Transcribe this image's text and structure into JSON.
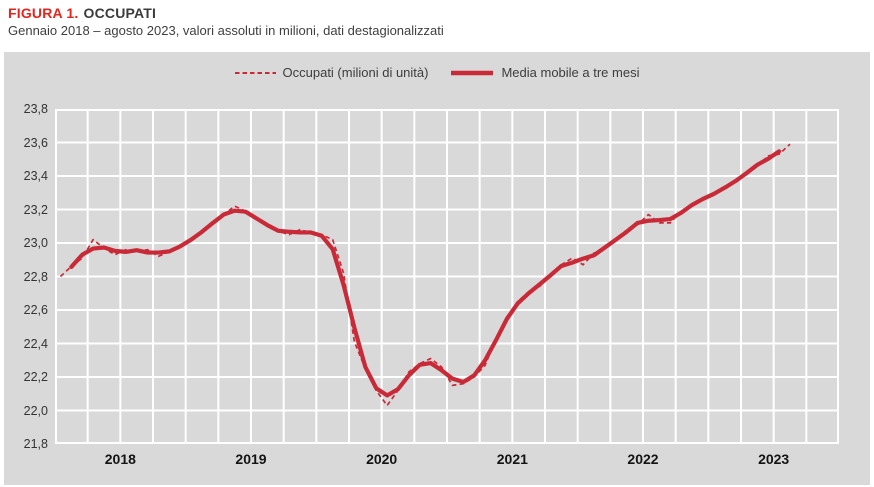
{
  "header": {
    "figure_label": "FIGURA 1.",
    "title": "OCCUPATI",
    "subtitle": "Gennaio 2018 – agosto 2023, valori assoluti in milioni, dati destagionalizzati"
  },
  "colors": {
    "accent_red": "#e3251d",
    "series_red": "#c92a38",
    "panel_bg": "#d9d9d9",
    "grid": "#ffffff",
    "text_dark": "#3d3d3d"
  },
  "chart": {
    "legend": [
      {
        "label": "Occupati (milioni di unità)",
        "style": "dashed"
      },
      {
        "label": "Media mobile a tre mesi",
        "style": "solid"
      }
    ],
    "y_tick_labels": [
      "23,8",
      "23,6",
      "23,4",
      "23,2",
      "23,0",
      "22,8",
      "22,6",
      "22,4",
      "22,2",
      "22,0",
      "21,8"
    ],
    "x_tick_labels": [
      "2018",
      "2019",
      "2020",
      "2021",
      "2022",
      "2023"
    ]
  },
  "chart_data": {
    "type": "line",
    "title": "FIGURA 1. OCCUPATI",
    "subtitle": "Gennaio 2018 – agosto 2023, valori assoluti in milioni, dati destagionalizzati",
    "unit": "milioni di unità",
    "x_freq": "monthly",
    "x_start": "2018-01",
    "x_end": "2023-08",
    "x_months": [
      "2018-01",
      "2018-02",
      "2018-03",
      "2018-04",
      "2018-05",
      "2018-06",
      "2018-07",
      "2018-08",
      "2018-09",
      "2018-10",
      "2018-11",
      "2018-12",
      "2019-01",
      "2019-02",
      "2019-03",
      "2019-04",
      "2019-05",
      "2019-06",
      "2019-07",
      "2019-08",
      "2019-09",
      "2019-10",
      "2019-11",
      "2019-12",
      "2020-01",
      "2020-02",
      "2020-03",
      "2020-04",
      "2020-05",
      "2020-06",
      "2020-07",
      "2020-08",
      "2020-09",
      "2020-10",
      "2020-11",
      "2020-12",
      "2021-01",
      "2021-02",
      "2021-03",
      "2021-04",
      "2021-05",
      "2021-06",
      "2021-07",
      "2021-08",
      "2021-09",
      "2021-10",
      "2021-11",
      "2021-12",
      "2022-01",
      "2022-02",
      "2022-03",
      "2022-04",
      "2022-05",
      "2022-06",
      "2022-07",
      "2022-08",
      "2022-09",
      "2022-10",
      "2022-11",
      "2022-12",
      "2023-01",
      "2023-02",
      "2023-03",
      "2023-04",
      "2023-05",
      "2023-06",
      "2023-07",
      "2023-08"
    ],
    "series": [
      {
        "name": "Occupati (milioni di unità)",
        "style": "dashed",
        "values": [
          22.8,
          22.86,
          22.91,
          23.02,
          22.97,
          22.93,
          22.96,
          22.95,
          22.96,
          22.92,
          22.95,
          22.98,
          23.01,
          23.07,
          23.12,
          23.17,
          23.22,
          23.19,
          23.15,
          23.1,
          23.07,
          23.05,
          23.08,
          23.06,
          23.05,
          23.02,
          22.82,
          22.41,
          22.25,
          22.12,
          22.03,
          22.12,
          22.23,
          22.28,
          22.31,
          22.26,
          22.15,
          22.16,
          22.2,
          22.27,
          22.43,
          22.56,
          22.65,
          22.71,
          22.74,
          22.81,
          22.87,
          22.91,
          22.87,
          22.94,
          22.97,
          23.01,
          23.08,
          23.11,
          23.17,
          23.12,
          23.12,
          23.19,
          23.23,
          23.26,
          23.3,
          23.32,
          23.37,
          23.42,
          23.46,
          23.52,
          23.53,
          23.59
        ]
      },
      {
        "name": "Media mobile a tre mesi",
        "style": "solid",
        "derivation": "media mobile centrata a tre mesi della serie Occupati",
        "values": [
          null,
          22.857,
          22.93,
          22.967,
          22.973,
          22.953,
          22.947,
          22.957,
          22.943,
          22.943,
          22.95,
          22.98,
          23.02,
          23.067,
          23.12,
          23.17,
          23.193,
          23.187,
          23.147,
          23.107,
          23.073,
          23.067,
          23.063,
          23.063,
          23.043,
          22.963,
          22.75,
          22.493,
          22.26,
          22.133,
          22.09,
          22.127,
          22.21,
          22.273,
          22.283,
          22.24,
          22.19,
          22.17,
          22.21,
          22.3,
          22.42,
          22.547,
          22.64,
          22.7,
          22.753,
          22.807,
          22.863,
          22.883,
          22.907,
          22.927,
          22.973,
          23.02,
          23.067,
          23.12,
          23.133,
          23.137,
          23.143,
          23.18,
          23.227,
          23.263,
          23.293,
          23.33,
          23.37,
          23.417,
          23.467,
          23.503,
          23.547,
          null
        ]
      }
    ],
    "ylim": [
      21.8,
      23.8
    ],
    "y_step": 0.2,
    "grid": true,
    "v_grid_every_months": 3,
    "legend_position": "top-center"
  }
}
